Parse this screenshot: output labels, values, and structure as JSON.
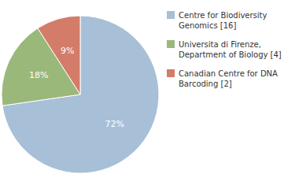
{
  "chart_data": {
    "type": "pie",
    "categories": [
      "Centre for Biodiversity\nGenomics [16]",
      "Universita di Firenze,\nDepartment of Biology [4]",
      "Canadian Centre for DNA\nBarcoding [2]"
    ],
    "values": [
      72,
      18,
      9
    ],
    "value_labels": [
      "72%",
      "18%",
      "9%"
    ],
    "data_labels": true,
    "colors": [
      "#a8bfd8",
      "#9ab87a",
      "#d47c6a"
    ],
    "legend": "right"
  }
}
